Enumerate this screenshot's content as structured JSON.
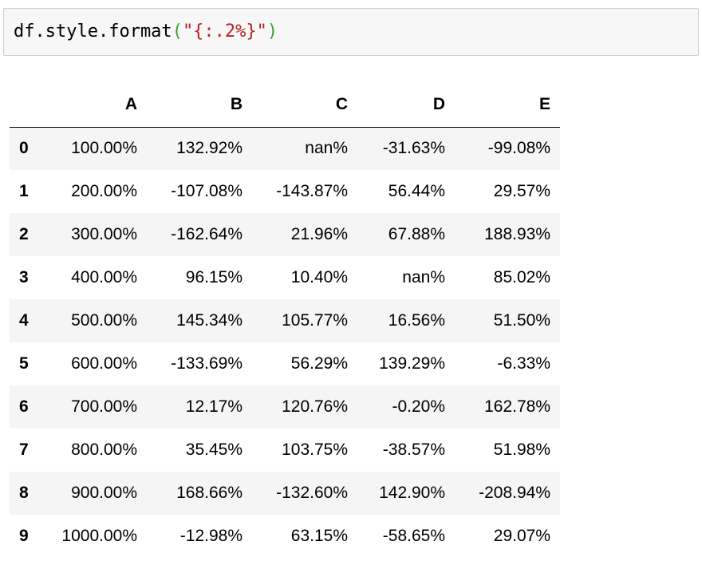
{
  "code_cell": {
    "prefix": "df.style.format",
    "open_paren": "(",
    "string": "\"{:.2%}\"",
    "close_paren": ")"
  },
  "table": {
    "index_header": "",
    "columns": [
      "A",
      "B",
      "C",
      "D",
      "E"
    ],
    "rows": [
      {
        "index": "0",
        "values": [
          "100.00%",
          "132.92%",
          "nan%",
          "-31.63%",
          "-99.08%"
        ]
      },
      {
        "index": "1",
        "values": [
          "200.00%",
          "-107.08%",
          "-143.87%",
          "56.44%",
          "29.57%"
        ]
      },
      {
        "index": "2",
        "values": [
          "300.00%",
          "-162.64%",
          "21.96%",
          "67.88%",
          "188.93%"
        ]
      },
      {
        "index": "3",
        "values": [
          "400.00%",
          "96.15%",
          "10.40%",
          "nan%",
          "85.02%"
        ]
      },
      {
        "index": "4",
        "values": [
          "500.00%",
          "145.34%",
          "105.77%",
          "16.56%",
          "51.50%"
        ]
      },
      {
        "index": "5",
        "values": [
          "600.00%",
          "-133.69%",
          "56.29%",
          "139.29%",
          "-6.33%"
        ]
      },
      {
        "index": "6",
        "values": [
          "700.00%",
          "12.17%",
          "120.76%",
          "-0.20%",
          "162.78%"
        ]
      },
      {
        "index": "7",
        "values": [
          "800.00%",
          "35.45%",
          "103.75%",
          "-38.57%",
          "51.98%"
        ]
      },
      {
        "index": "8",
        "values": [
          "900.00%",
          "168.66%",
          "-132.60%",
          "142.90%",
          "-208.94%"
        ]
      },
      {
        "index": "9",
        "values": [
          "1000.00%",
          "-12.98%",
          "63.15%",
          "-58.65%",
          "29.07%"
        ]
      }
    ]
  },
  "colors": {
    "code_background": "#f7f7f7",
    "code_border": "#cfcfcf",
    "paren": "#39a339",
    "string": "#ba2121",
    "row_stripe": "#f5f5f5"
  }
}
